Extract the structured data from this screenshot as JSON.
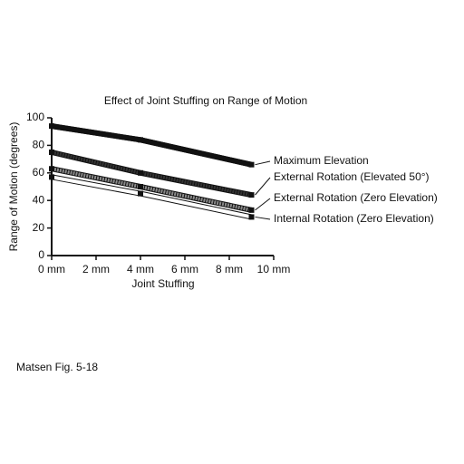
{
  "chart_data": {
    "type": "line",
    "title": "Effect of Joint Stuffing on Range of Motion",
    "x_label": "Joint Stuffing",
    "y_label": "Range of Motion (degrees)",
    "caption": "Matsen Fig. 5-18",
    "xlim": [
      0,
      10
    ],
    "xticks": [
      {
        "value": 0,
        "label": "0 mm"
      },
      {
        "value": 2,
        "label": "2 mm"
      },
      {
        "value": 4,
        "label": "4 mm"
      },
      {
        "value": 6,
        "label": "6 mm"
      },
      {
        "value": 8,
        "label": "8 mm"
      },
      {
        "value": 10,
        "label": "10 mm"
      }
    ],
    "ylim": [
      0,
      100
    ],
    "yticks": [
      0,
      20,
      40,
      60,
      80,
      100
    ],
    "x": [
      0,
      4,
      9
    ],
    "series": [
      {
        "name": "Maximum Elevation",
        "color": "#111111",
        "values": [
          94,
          84,
          66
        ]
      },
      {
        "name": "External Rotation (Elevated 50°)",
        "color": "#333333",
        "values": [
          75,
          60,
          44
        ]
      },
      {
        "name": "External Rotation (Zero Elevation)",
        "color": "#8a8a8a",
        "values": [
          63,
          50,
          33
        ]
      },
      {
        "name": "Internal Rotation (Zero Elevation)",
        "color": "#ffffff",
        "values": [
          57,
          45,
          28
        ]
      }
    ]
  }
}
